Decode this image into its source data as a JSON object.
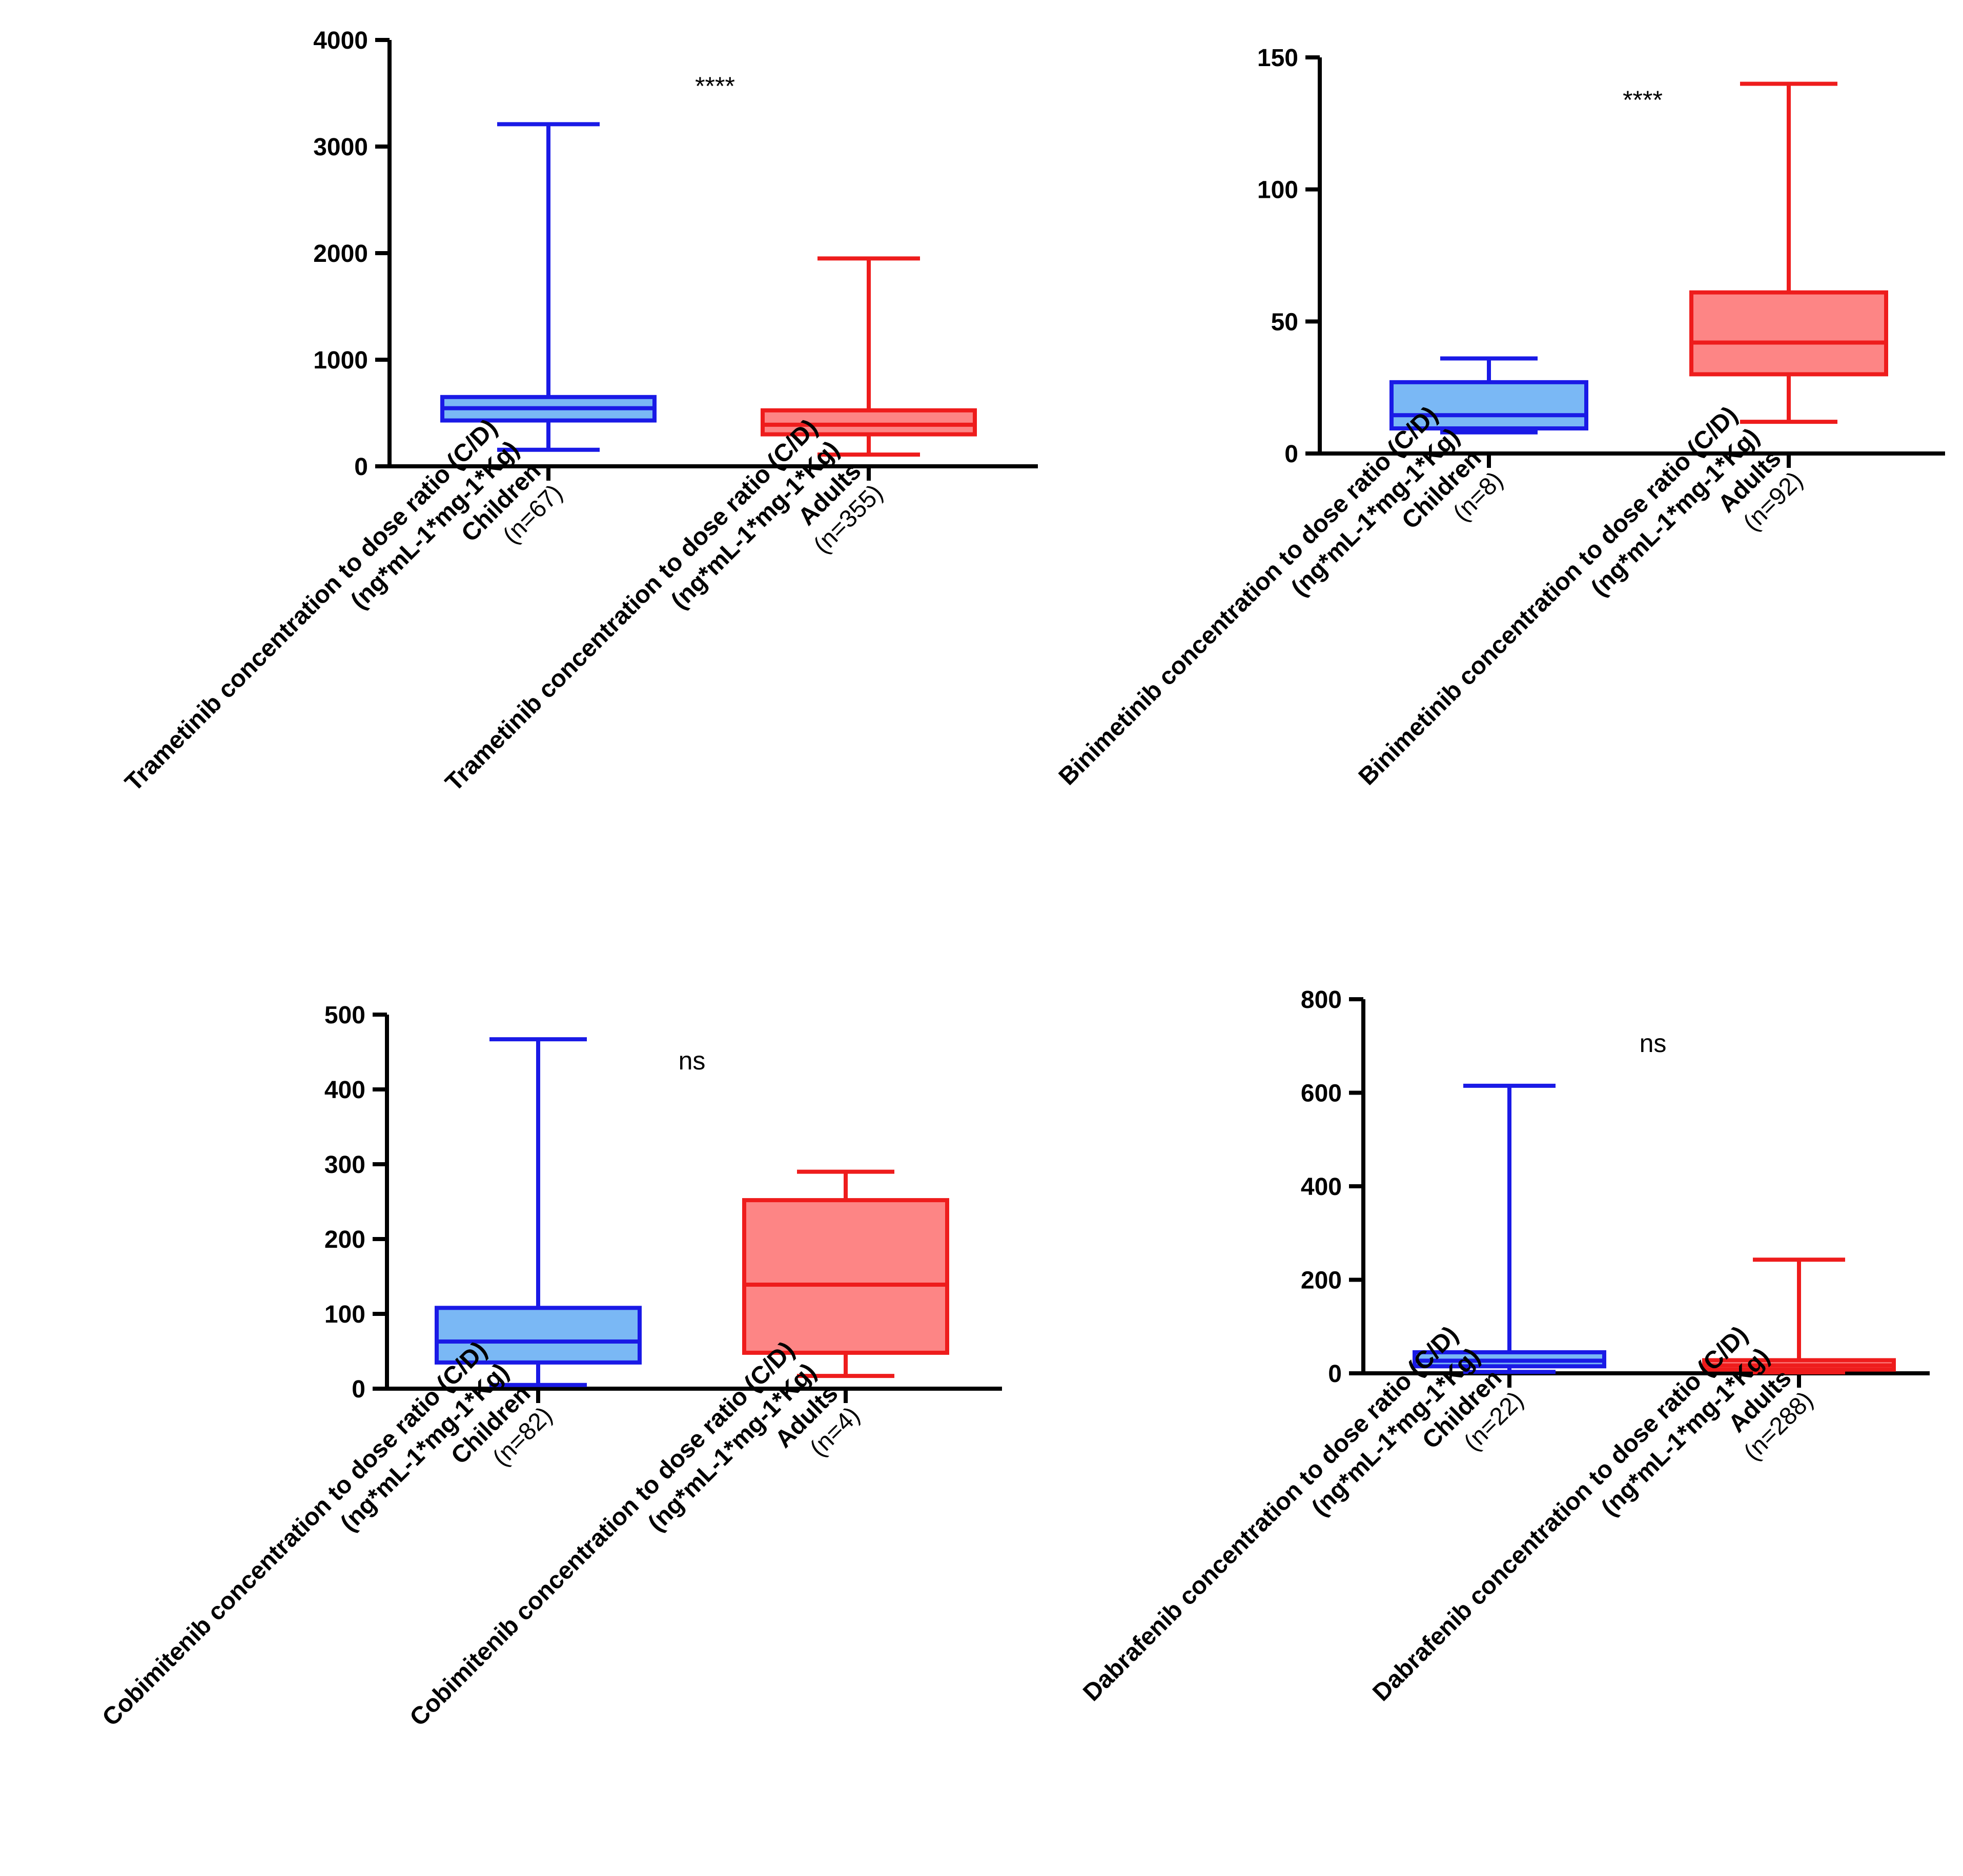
{
  "colors": {
    "children_stroke": "#1a1ae6",
    "children_fill": "#7ab8f5",
    "adults_stroke": "#ee1c1c",
    "adults_fill": "#fd8585",
    "axis": "#000000"
  },
  "chart_data": [
    {
      "type": "box",
      "title": "",
      "xlabel": "",
      "ylabel": "",
      "ylim": [
        0,
        4000
      ],
      "yticks": [
        "0",
        "1000",
        "2000",
        "3000",
        "4000"
      ],
      "significance": "****",
      "categories": [
        [
          "Trametinib concentration to dose ratio (C/D)",
          "(ng*mL-1*mg-1*Kg)",
          "Children",
          "(n=67)"
        ],
        [
          "Trametinib concentration to dose ratio (C/D)",
          "(ng*mL-1*mg-1*Kg)",
          "Adults",
          "(n=355)"
        ]
      ],
      "series": [
        {
          "name": "Children",
          "min": 155,
          "q1": 430,
          "median": 545,
          "q3": 650,
          "max": 3210
        },
        {
          "name": "Adults",
          "min": 110,
          "q1": 300,
          "median": 390,
          "q3": 525,
          "max": 1950
        }
      ]
    },
    {
      "type": "box",
      "title": "",
      "xlabel": "",
      "ylabel": "",
      "ylim": [
        0,
        150
      ],
      "yticks": [
        "0",
        "50",
        "100",
        "150"
      ],
      "significance": "****",
      "categories": [
        [
          "Binimetinib concentration to dose ratio (C/D)",
          "(ng*mL-1*mg-1*Kg)",
          "Children",
          "(n=8)"
        ],
        [
          "Binimetinib concentration to dose ratio (C/D)",
          "(ng*mL-1*mg-1*Kg)",
          "Adults",
          "(n=92)"
        ]
      ],
      "series": [
        {
          "name": "Children",
          "min": 8,
          "q1": 9.5,
          "median": 14.5,
          "q3": 27,
          "max": 36
        },
        {
          "name": "Adults",
          "min": 12,
          "q1": 30,
          "median": 42,
          "q3": 61,
          "max": 140
        }
      ]
    },
    {
      "type": "box",
      "title": "",
      "xlabel": "",
      "ylabel": "",
      "ylim": [
        0,
        500
      ],
      "yticks": [
        "0",
        "100",
        "200",
        "300",
        "400",
        "500"
      ],
      "significance": "ns",
      "categories": [
        [
          "Cobimitenib concentration to dose ratio (C/D)",
          "(ng*mL-1*mg-1*Kg)",
          "Children",
          "(n=82)"
        ],
        [
          "Cobimitenib concentration to dose ratio (C/D)",
          "(ng*mL-1*mg-1*Kg)",
          "Adults",
          "(n=4)"
        ]
      ],
      "series": [
        {
          "name": "Children",
          "min": 5,
          "q1": 35,
          "median": 63,
          "q3": 108,
          "max": 467
        },
        {
          "name": "Adults",
          "min": 17,
          "q1": 48,
          "median": 139,
          "q3": 252,
          "max": 290
        }
      ]
    },
    {
      "type": "box",
      "title": "",
      "xlabel": "",
      "ylabel": "",
      "ylim": [
        0,
        800
      ],
      "yticks": [
        "0",
        "200",
        "400",
        "600",
        "800"
      ],
      "significance": "ns",
      "categories": [
        [
          "Dabrafenib concentration to dose ratio (C/D)",
          "(ng*mL-1*mg-1*Kg)",
          "Children",
          "(n=22)"
        ],
        [
          "Dabrafenib concentration to dose ratio (C/D)",
          "(ng*mL-1*mg-1*Kg)",
          "Adults",
          "(n=288)"
        ]
      ],
      "series": [
        {
          "name": "Children",
          "min": 3,
          "q1": 15,
          "median": 27,
          "q3": 45,
          "max": 615
        },
        {
          "name": "Adults",
          "min": 2,
          "q1": 8,
          "median": 17,
          "q3": 28,
          "max": 243
        }
      ]
    }
  ]
}
